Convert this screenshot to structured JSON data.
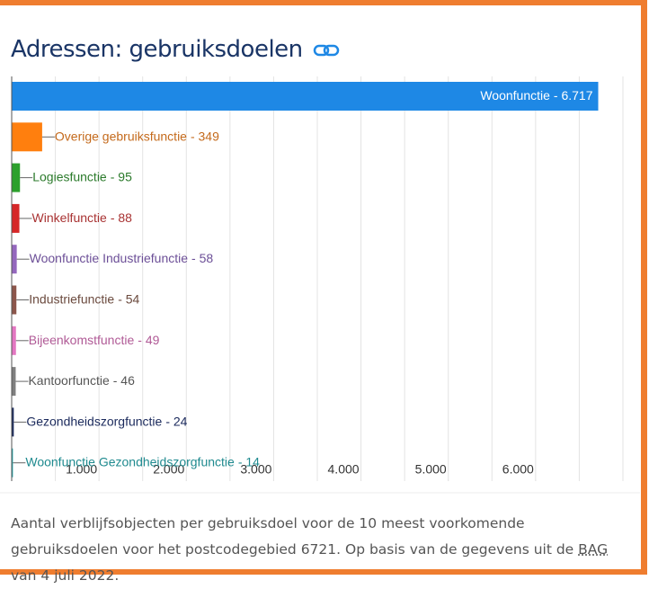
{
  "chart_data": {
    "type": "barh",
    "title": "Adressen: gebruiksdoelen",
    "categories": [
      "Woonfunctie",
      "Overige gebruiksfunctie",
      "Logiesfunctie",
      "Winkelfunctie",
      "Woonfunctie Industriefunctie",
      "Industriefunctie",
      "Bijeenkomstfunctie",
      "Kantoorfunctie",
      "Gezondheidszorgfunctie",
      "Woonfunctie Gezondheidszorgfunctie"
    ],
    "values": [
      6717,
      349,
      95,
      88,
      58,
      54,
      49,
      46,
      24,
      14
    ],
    "value_labels": [
      "- 6.717",
      "- 349",
      "- 95",
      "- 88",
      "- 58",
      "- 54",
      "- 49",
      "- 46",
      "- 24",
      "- 14"
    ],
    "colors": [
      "#1e88e5",
      "#ff7f0e",
      "#2ca02c",
      "#d62728",
      "#9467bd",
      "#8c564b",
      "#e377c2",
      "#7f7f7f",
      "#1b2a5c",
      "#17a2a8"
    ],
    "label_colors": [
      "#ffffff",
      "#c46a1c",
      "#2b7a2b",
      "#a83232",
      "#6c4f97",
      "#6b4a3e",
      "#b05a96",
      "#555555",
      "#1b2a5c",
      "#1f8a8f"
    ],
    "xlim": [
      0,
      7000
    ],
    "xticks": [
      {
        "value": 1000,
        "label": "1.000"
      },
      {
        "value": 2000,
        "label": "2.000"
      },
      {
        "value": 3000,
        "label": "3.000"
      },
      {
        "value": 4000,
        "label": "4.000"
      },
      {
        "value": 5000,
        "label": "5.000"
      },
      {
        "value": 6000,
        "label": "6.000"
      }
    ],
    "xgrid": [
      500,
      1000,
      1500,
      2000,
      2500,
      3000,
      3500,
      4000,
      4500,
      5000,
      5500,
      6000,
      6500,
      7000
    ],
    "grid": true,
    "caption": {
      "before": "Aantal verblijfsobjecten per gebruiksdoel voor de 10 meest voorkomende gebruiksdoelen voor het postcodegebied 6721. Op basis van de gegevens uit de ",
      "link": "BAG",
      "after": " van 4 juli 2022."
    }
  }
}
